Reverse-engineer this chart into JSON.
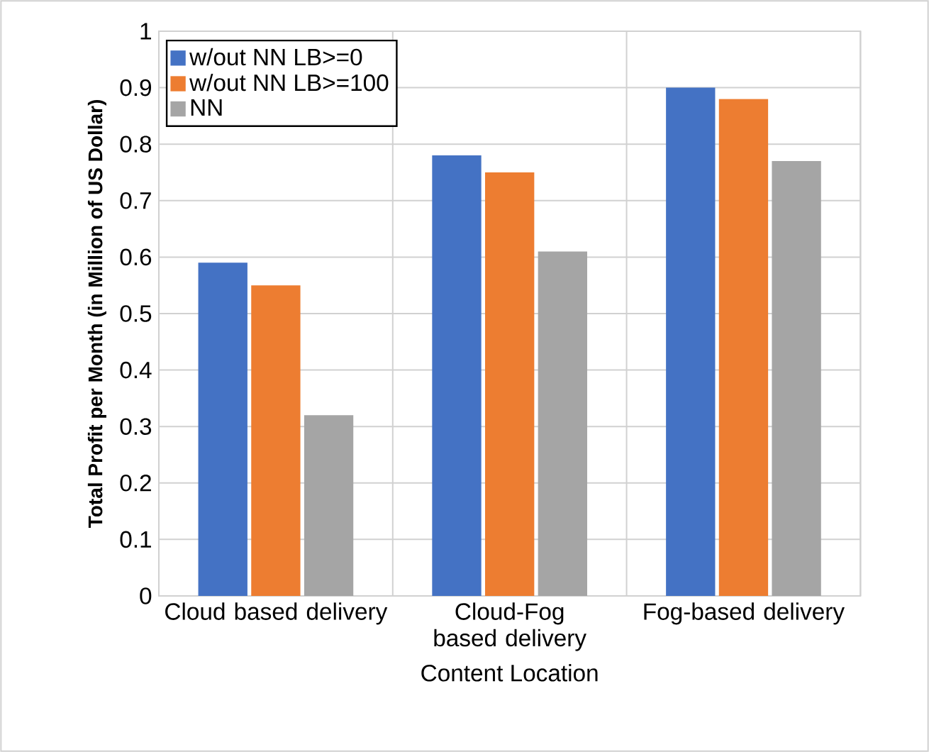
{
  "chart_data": {
    "type": "bar",
    "xlabel": "Content Location",
    "ylabel": "Total Profit per Month (in Million of US Dollar)",
    "categories": [
      "Cloud based delivery",
      "Cloud-Fog based delivery",
      "Fog-based delivery"
    ],
    "series": [
      {
        "name": "w/out NN LB>=0",
        "color": "#4472c4",
        "values": [
          0.59,
          0.78,
          0.9
        ]
      },
      {
        "name": "w/out NN LB>=100",
        "color": "#ed7d31",
        "values": [
          0.55,
          0.75,
          0.88
        ]
      },
      {
        "name": "NN",
        "color": "#a5a5a5",
        "values": [
          0.32,
          0.61,
          0.77
        ]
      }
    ],
    "ylim": [
      0,
      1
    ],
    "yticks": [
      0,
      0.1,
      0.2,
      0.3,
      0.4,
      0.5,
      0.6,
      0.7,
      0.8,
      0.9,
      1
    ],
    "grid": true,
    "legend": "top left"
  }
}
